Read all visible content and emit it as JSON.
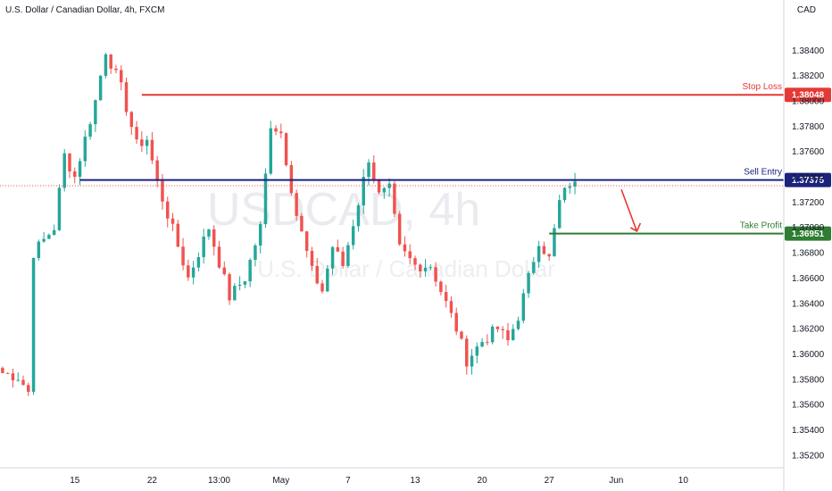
{
  "header": {
    "symbol_title": "U.S. Dollar / Canadian Dollar, 4h, FXCM"
  },
  "currency_label": "CAD",
  "watermark": {
    "ticker": "USDCAD, 4h",
    "description": "U.S. Dollar / Canadian Dollar"
  },
  "colors": {
    "up": "#26a69a",
    "down": "#ef5350",
    "stop_loss": "#e53935",
    "entry": "#1a237e",
    "take_profit": "#2e7d32",
    "arrow": "#e53935",
    "last_price_line": "#ef5350"
  },
  "chart_data": {
    "type": "candlestick",
    "instrument": "USDCAD",
    "timeframe": "4h",
    "ylim": [
      1.351,
      1.386
    ],
    "y_ticks": [
      "1.38400",
      "1.38200",
      "1.38000",
      "1.37800",
      "1.37600",
      "1.37400",
      "1.37200",
      "1.37000",
      "1.36800",
      "1.36600",
      "1.36400",
      "1.36200",
      "1.36000",
      "1.35800",
      "1.35600",
      "1.35400",
      "1.35200"
    ],
    "x_ticks": [
      "15",
      "22",
      "13:00",
      "May",
      "7",
      "13",
      "20",
      "27",
      "Jun",
      "10"
    ],
    "x_tick_index": [
      14,
      29,
      42,
      54,
      67,
      80,
      93,
      106,
      119,
      132
    ],
    "total_slots": 152,
    "key_points": [
      {
        "i": 0,
        "p": 1.3585
      },
      {
        "i": 3,
        "p": 1.3582
      },
      {
        "i": 5,
        "p": 1.357
      },
      {
        "i": 6,
        "p": 1.368
      },
      {
        "i": 10,
        "p": 1.37
      },
      {
        "i": 12,
        "p": 1.3757
      },
      {
        "i": 14,
        "p": 1.374
      },
      {
        "i": 18,
        "p": 1.38
      },
      {
        "i": 20,
        "p": 1.384
      },
      {
        "i": 23,
        "p": 1.381
      },
      {
        "i": 26,
        "p": 1.3765
      },
      {
        "i": 28,
        "p": 1.377
      },
      {
        "i": 30,
        "p": 1.3735
      },
      {
        "i": 33,
        "p": 1.3698
      },
      {
        "i": 36,
        "p": 1.366
      },
      {
        "i": 40,
        "p": 1.37
      },
      {
        "i": 44,
        "p": 1.3645
      },
      {
        "i": 47,
        "p": 1.366
      },
      {
        "i": 50,
        "p": 1.37
      },
      {
        "i": 52,
        "p": 1.3782
      },
      {
        "i": 54,
        "p": 1.3775
      },
      {
        "i": 57,
        "p": 1.371
      },
      {
        "i": 60,
        "p": 1.3665
      },
      {
        "i": 62,
        "p": 1.365
      },
      {
        "i": 64,
        "p": 1.3685
      },
      {
        "i": 66,
        "p": 1.367
      },
      {
        "i": 69,
        "p": 1.372
      },
      {
        "i": 71,
        "p": 1.3755
      },
      {
        "i": 73,
        "p": 1.3725
      },
      {
        "i": 75,
        "p": 1.373
      },
      {
        "i": 77,
        "p": 1.3683
      },
      {
        "i": 80,
        "p": 1.367
      },
      {
        "i": 83,
        "p": 1.367
      },
      {
        "i": 86,
        "p": 1.364
      },
      {
        "i": 88,
        "p": 1.362
      },
      {
        "i": 90,
        "p": 1.3595
      },
      {
        "i": 93,
        "p": 1.361
      },
      {
        "i": 96,
        "p": 1.362
      },
      {
        "i": 98,
        "p": 1.361
      },
      {
        "i": 100,
        "p": 1.363
      },
      {
        "i": 102,
        "p": 1.366
      },
      {
        "i": 104,
        "p": 1.369
      },
      {
        "i": 106,
        "p": 1.3675
      },
      {
        "i": 108,
        "p": 1.372
      },
      {
        "i": 110,
        "p": 1.3735
      },
      {
        "i": 111,
        "p": 1.3733
      }
    ],
    "levels": [
      {
        "name": "Stop Loss",
        "price": 1.38048,
        "label": "1.38048",
        "start_index": 27
      },
      {
        "name": "Sell Entry",
        "price": 1.37375,
        "label": "1.37375",
        "start_index": 15
      },
      {
        "name": "Take Profit",
        "price": 1.36951,
        "label": "1.36951",
        "start_index": 106
      }
    ],
    "last_price": 1.3733,
    "arrow": {
      "from_index": 120,
      "from_price": 1.373,
      "to_index": 123,
      "to_price": 1.3697
    }
  }
}
